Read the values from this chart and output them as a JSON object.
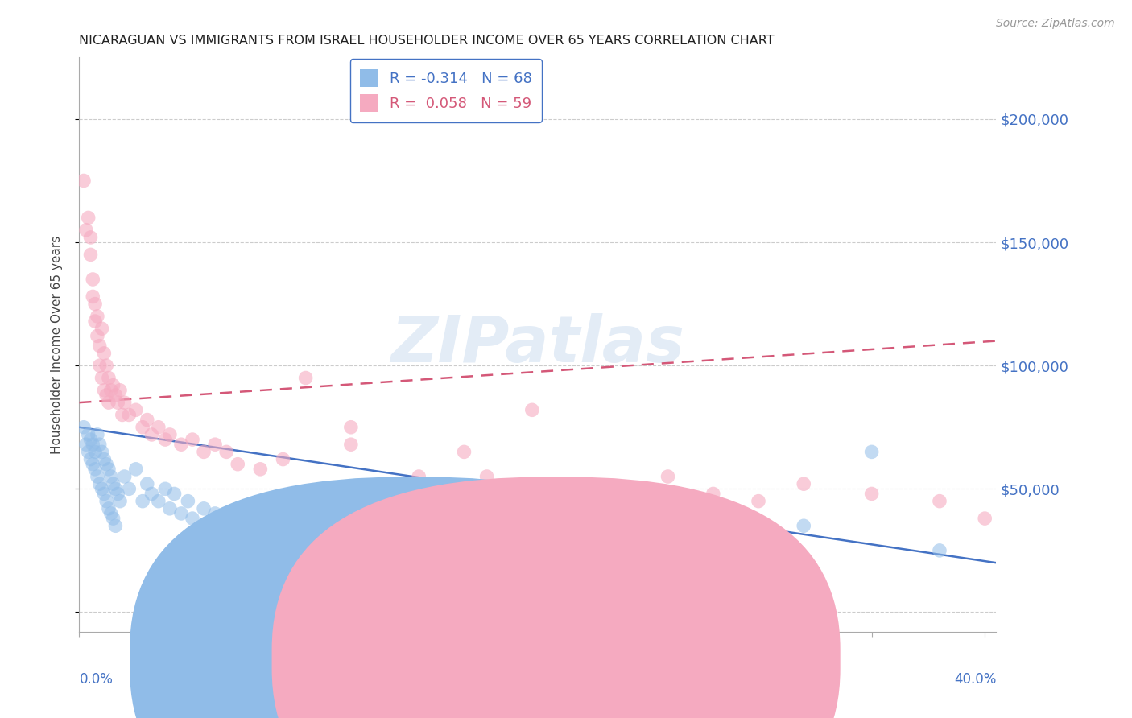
{
  "title": "NICARAGUAN VS IMMIGRANTS FROM ISRAEL HOUSEHOLDER INCOME OVER 65 YEARS CORRELATION CHART",
  "source": "Source: ZipAtlas.com",
  "ylabel": "Householder Income Over 65 years",
  "xlim": [
    0.0,
    0.405
  ],
  "ylim": [
    -8000,
    225000
  ],
  "ytick_vals": [
    0,
    50000,
    100000,
    150000,
    200000
  ],
  "ytick_labels_right": [
    "",
    "$50,000",
    "$100,000",
    "$150,000",
    "$200,000"
  ],
  "xtick_left_label": "0.0%",
  "xtick_right_label": "40.0%",
  "nicaraguan_color": "#90bce8",
  "israel_color": "#f5aac0",
  "nicaraguan_line_color": "#4472c4",
  "israel_line_color": "#d45878",
  "right_axis_color": "#4472c4",
  "watermark_text": "ZIPatlas",
  "legend_R_nic": "-0.314",
  "legend_N_nic": "68",
  "legend_R_isr": "0.058",
  "legend_N_isr": "59",
  "nicaraguan_points_x": [
    0.002,
    0.003,
    0.004,
    0.004,
    0.005,
    0.005,
    0.006,
    0.006,
    0.007,
    0.007,
    0.008,
    0.008,
    0.009,
    0.009,
    0.01,
    0.01,
    0.011,
    0.011,
    0.012,
    0.012,
    0.013,
    0.013,
    0.014,
    0.014,
    0.015,
    0.015,
    0.016,
    0.016,
    0.017,
    0.018,
    0.02,
    0.022,
    0.025,
    0.028,
    0.03,
    0.032,
    0.035,
    0.038,
    0.04,
    0.042,
    0.045,
    0.048,
    0.05,
    0.055,
    0.06,
    0.065,
    0.07,
    0.075,
    0.08,
    0.085,
    0.09,
    0.1,
    0.11,
    0.12,
    0.13,
    0.14,
    0.15,
    0.16,
    0.17,
    0.18,
    0.2,
    0.22,
    0.24,
    0.26,
    0.28,
    0.32,
    0.35,
    0.38
  ],
  "nicaraguan_points_y": [
    75000,
    68000,
    72000,
    65000,
    70000,
    62000,
    68000,
    60000,
    65000,
    58000,
    72000,
    55000,
    68000,
    52000,
    65000,
    50000,
    62000,
    48000,
    60000,
    45000,
    58000,
    42000,
    55000,
    40000,
    52000,
    38000,
    50000,
    35000,
    48000,
    45000,
    55000,
    50000,
    58000,
    45000,
    52000,
    48000,
    45000,
    50000,
    42000,
    48000,
    40000,
    45000,
    38000,
    42000,
    40000,
    38000,
    42000,
    35000,
    40000,
    38000,
    35000,
    40000,
    38000,
    35000,
    38000,
    32000,
    35000,
    32000,
    30000,
    35000,
    32000,
    35000,
    30000,
    32000,
    28000,
    35000,
    65000,
    25000
  ],
  "israel_points_x": [
    0.002,
    0.003,
    0.004,
    0.005,
    0.005,
    0.006,
    0.006,
    0.007,
    0.007,
    0.008,
    0.008,
    0.009,
    0.009,
    0.01,
    0.01,
    0.011,
    0.011,
    0.012,
    0.012,
    0.013,
    0.013,
    0.014,
    0.015,
    0.016,
    0.017,
    0.018,
    0.019,
    0.02,
    0.022,
    0.025,
    0.028,
    0.03,
    0.032,
    0.035,
    0.038,
    0.04,
    0.045,
    0.05,
    0.055,
    0.06,
    0.065,
    0.07,
    0.08,
    0.09,
    0.1,
    0.12,
    0.15,
    0.17,
    0.18,
    0.2,
    0.24,
    0.26,
    0.28,
    0.3,
    0.32,
    0.35,
    0.38,
    0.4,
    0.12
  ],
  "israel_points_y": [
    175000,
    155000,
    160000,
    152000,
    145000,
    135000,
    128000,
    125000,
    118000,
    112000,
    120000,
    108000,
    100000,
    115000,
    95000,
    105000,
    90000,
    100000,
    88000,
    95000,
    85000,
    90000,
    92000,
    88000,
    85000,
    90000,
    80000,
    85000,
    80000,
    82000,
    75000,
    78000,
    72000,
    75000,
    70000,
    72000,
    68000,
    70000,
    65000,
    68000,
    65000,
    60000,
    58000,
    62000,
    95000,
    68000,
    55000,
    65000,
    55000,
    82000,
    50000,
    55000,
    48000,
    45000,
    52000,
    48000,
    45000,
    38000,
    75000
  ]
}
